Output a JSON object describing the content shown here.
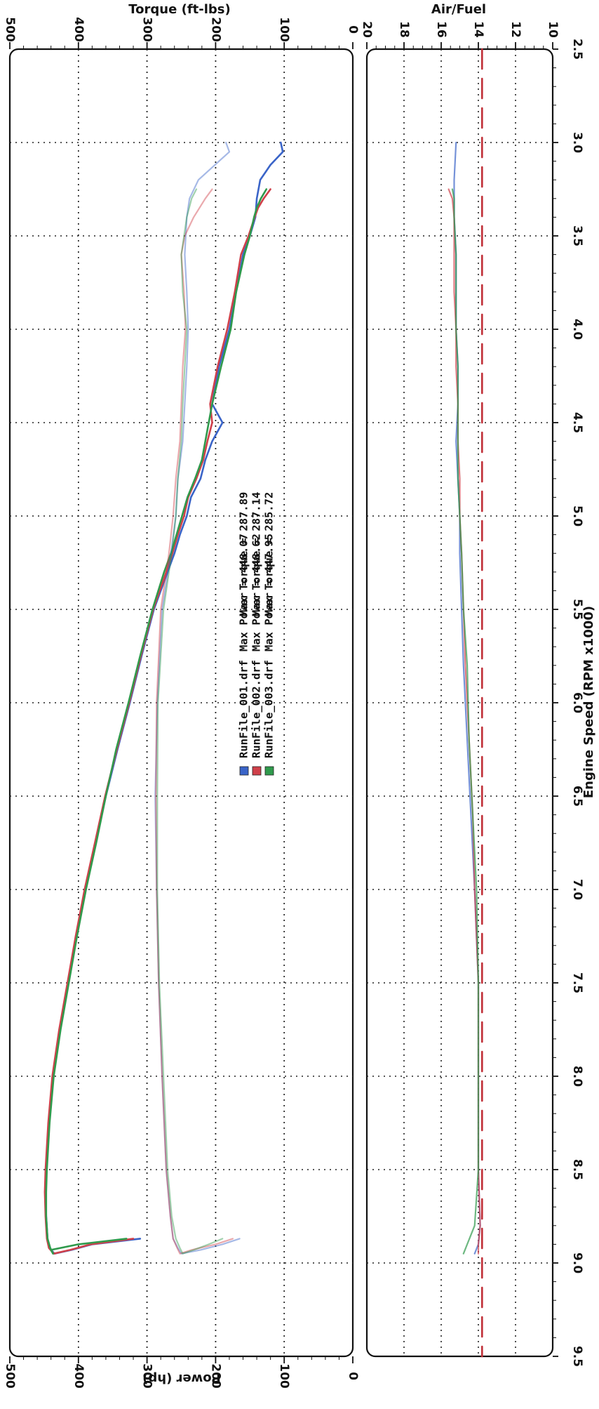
{
  "chart_data": [
    {
      "type": "line",
      "title": "",
      "ylabel_left": "Torque (ft-lbs)",
      "ylabel_right": "Power (hp)",
      "xlabel": "Engine Speed (RPM x1000)",
      "xlim": [
        2.5,
        9.5
      ],
      "ylim": [
        0,
        500
      ],
      "x_ticks": [
        "2.5",
        "3.0",
        "3.5",
        "4.0",
        "4.5",
        "5.0",
        "5.5",
        "6.0",
        "6.5",
        "7.0",
        "7.5",
        "8.0",
        "8.5",
        "9.0",
        "9.5"
      ],
      "y_ticks_torque": [
        "0",
        "100",
        "200",
        "300",
        "400",
        "500"
      ],
      "y_ticks_power": [
        "0",
        "100",
        "200",
        "300",
        "400",
        "500"
      ],
      "grid": true,
      "legend_position": "center",
      "legend": [
        {
          "run": "RunFile_001.drf",
          "power_label": "Max Power = 448.07",
          "torque_label": "Max Torque = 287.89",
          "color": "#3a64c8"
        },
        {
          "run": "RunFile_002.drf",
          "power_label": "Max Power = 448.62",
          "torque_label": "Max Torque = 287.14",
          "color": "#d0404a"
        },
        {
          "run": "RunFile_003.drf",
          "power_label": "Max Power = 447.95",
          "torque_label": "Max Torque = 285.72",
          "color": "#2f9a4c"
        }
      ],
      "series": [
        {
          "name": "RunFile_001.drf",
          "quantity": "Power",
          "color": "#3a64c8",
          "opacity": 1.0,
          "x": [
            3.0,
            3.05,
            3.12,
            3.2,
            3.3,
            3.4,
            3.5,
            3.6,
            3.8,
            4.0,
            4.2,
            4.4,
            4.5,
            4.6,
            4.7,
            4.8,
            4.9,
            5.0,
            5.1,
            5.2,
            5.3,
            5.5,
            5.75,
            6.0,
            6.25,
            6.5,
            6.75,
            7.0,
            7.25,
            7.5,
            7.75,
            8.0,
            8.25,
            8.5,
            8.62,
            8.75,
            8.87,
            8.92,
            8.95,
            8.93,
            8.9,
            8.87
          ],
          "y": [
            105,
            102,
            120,
            135,
            140,
            142,
            150,
            160,
            170,
            180,
            195,
            205,
            190,
            205,
            215,
            222,
            236,
            242,
            252,
            260,
            270,
            290,
            308,
            325,
            343,
            360,
            375,
            390,
            403,
            415,
            427,
            437,
            443,
            447,
            448,
            447,
            445,
            442,
            435,
            410,
            380,
            310
          ]
        },
        {
          "name": "RunFile_002.drf",
          "quantity": "Power",
          "color": "#d0404a",
          "opacity": 1.0,
          "x": [
            3.25,
            3.3,
            3.35,
            3.4,
            3.5,
            3.6,
            3.8,
            4.0,
            4.2,
            4.4,
            4.5,
            4.6,
            4.7,
            4.8,
            4.9,
            5.0,
            5.1,
            5.2,
            5.3,
            5.5,
            5.75,
            6.0,
            6.25,
            6.5,
            6.75,
            7.0,
            7.25,
            7.5,
            7.75,
            8.0,
            8.25,
            8.5,
            8.62,
            8.75,
            8.87,
            8.92,
            8.95,
            8.93,
            8.9,
            8.87
          ],
          "y": [
            120,
            130,
            138,
            143,
            152,
            163,
            172,
            183,
            197,
            208,
            205,
            212,
            218,
            228,
            240,
            246,
            255,
            263,
            272,
            291,
            309,
            326,
            344,
            361,
            376,
            391,
            404,
            416,
            428,
            438,
            444,
            448,
            449,
            448,
            446,
            443,
            436,
            412,
            382,
            320
          ]
        },
        {
          "name": "RunFile_003.drf",
          "quantity": "Power",
          "color": "#2f9a4c",
          "opacity": 1.0,
          "x": [
            3.25,
            3.3,
            3.35,
            3.4,
            3.5,
            3.6,
            3.8,
            4.0,
            4.2,
            4.4,
            4.5,
            4.6,
            4.7,
            4.8,
            4.9,
            5.0,
            5.1,
            5.2,
            5.3,
            5.5,
            5.75,
            6.0,
            6.25,
            6.5,
            6.75,
            7.0,
            7.25,
            7.5,
            7.75,
            8.0,
            8.25,
            8.5,
            8.62,
            8.75,
            8.87,
            8.92,
            8.95,
            8.93,
            8.9,
            8.87
          ],
          "y": [
            126,
            134,
            140,
            144,
            150,
            158,
            170,
            178,
            192,
            205,
            210,
            215,
            220,
            230,
            241,
            249,
            257,
            265,
            275,
            292,
            310,
            327,
            345,
            360,
            374,
            389,
            402,
            414,
            426,
            436,
            442,
            446,
            447,
            447,
            445,
            441,
            437,
            440,
            400,
            330
          ]
        },
        {
          "name": "RunFile_001.drf",
          "quantity": "Torque",
          "color": "#3a64c8",
          "opacity": 0.45,
          "x": [
            3.0,
            3.05,
            3.1,
            3.2,
            3.3,
            3.4,
            3.6,
            3.8,
            4.0,
            4.2,
            4.4,
            4.6,
            4.8,
            5.0,
            5.2,
            5.5,
            6.0,
            6.5,
            7.0,
            7.5,
            8.0,
            8.5,
            8.75,
            8.87,
            8.92,
            8.95,
            8.93,
            8.9,
            8.87
          ],
          "y": [
            185,
            180,
            195,
            225,
            238,
            242,
            245,
            242,
            240,
            242,
            245,
            248,
            255,
            258,
            265,
            278,
            285,
            288,
            286,
            283,
            278,
            272,
            266,
            262,
            255,
            250,
            222,
            190,
            165
          ]
        },
        {
          "name": "RunFile_002.drf",
          "quantity": "Torque",
          "color": "#d0404a",
          "opacity": 0.45,
          "x": [
            3.25,
            3.3,
            3.4,
            3.5,
            3.6,
            3.8,
            4.0,
            4.2,
            4.4,
            4.6,
            4.8,
            5.0,
            5.2,
            5.5,
            6.0,
            6.5,
            7.0,
            7.5,
            8.0,
            8.5,
            8.75,
            8.87,
            8.92,
            8.95,
            8.93,
            8.9,
            8.87
          ],
          "y": [
            205,
            215,
            232,
            245,
            250,
            246,
            244,
            248,
            250,
            252,
            258,
            262,
            268,
            280,
            286,
            287,
            286,
            283,
            278,
            272,
            266,
            262,
            256,
            252,
            235,
            200,
            175
          ]
        },
        {
          "name": "RunFile_003.drf",
          "quantity": "Torque",
          "color": "#2f9a4c",
          "opacity": 0.45,
          "x": [
            3.25,
            3.3,
            3.4,
            3.5,
            3.6,
            3.8,
            4.0,
            4.2,
            4.4,
            4.6,
            4.8,
            5.0,
            5.2,
            5.5,
            6.0,
            6.5,
            7.0,
            7.5,
            8.0,
            8.5,
            8.75,
            8.87,
            8.92,
            8.95,
            8.93,
            8.9,
            8.87
          ],
          "y": [
            228,
            235,
            242,
            246,
            250,
            248,
            242,
            245,
            248,
            250,
            255,
            258,
            264,
            276,
            284,
            285,
            285,
            282,
            276,
            270,
            264,
            258,
            252,
            248,
            232,
            210,
            190
          ]
        }
      ]
    },
    {
      "type": "line",
      "title": "",
      "ylabel": "Air/Fuel",
      "xlabel": "Engine Speed (RPM x1000)",
      "xlim": [
        2.5,
        9.5
      ],
      "ylim": [
        10,
        20
      ],
      "y_ticks": [
        "20",
        "18",
        "16",
        "14",
        "12",
        "10"
      ],
      "grid": true,
      "series": [
        {
          "name": "RunFile_001.drf",
          "color": "#3a64c8",
          "opacity": 0.7,
          "x": [
            3.0,
            3.2,
            3.4,
            3.6,
            3.8,
            4.0,
            4.2,
            4.4,
            4.6,
            4.8,
            5.0,
            5.2,
            5.5,
            5.8,
            6.2,
            6.6,
            7.0,
            7.5,
            8.0,
            8.5,
            8.8,
            8.9,
            8.95
          ],
          "y": [
            15.2,
            15.3,
            15.3,
            15.2,
            15.2,
            15.2,
            15.1,
            15.1,
            15.2,
            15.1,
            15.0,
            15.0,
            14.9,
            14.8,
            14.6,
            14.4,
            14.2,
            14.0,
            14.0,
            14.0,
            13.9,
            14.0,
            14.2
          ]
        },
        {
          "name": "RunFile_002.drf",
          "color": "#d0404a",
          "opacity": 0.7,
          "x": [
            3.25,
            3.3,
            3.4,
            3.6,
            3.8,
            4.0,
            4.2,
            4.4,
            4.6,
            4.8,
            5.0,
            5.2,
            5.5,
            5.8,
            6.2,
            6.6,
            7.0,
            7.5,
            8.0,
            8.5,
            8.8,
            8.9,
            8.95
          ],
          "y": [
            15.6,
            15.4,
            15.3,
            15.3,
            15.3,
            15.2,
            15.2,
            15.1,
            15.1,
            15.0,
            15.0,
            14.9,
            14.8,
            14.7,
            14.5,
            14.3,
            14.2,
            14.0,
            14.0,
            14.0,
            13.9,
            14.0,
            14.0
          ]
        },
        {
          "name": "RunFile_003.drf",
          "color": "#2f9a4c",
          "opacity": 0.7,
          "x": [
            3.25,
            3.3,
            3.4,
            3.6,
            3.8,
            4.0,
            4.2,
            4.4,
            4.6,
            4.8,
            5.0,
            5.2,
            5.5,
            5.8,
            6.2,
            6.6,
            7.0,
            7.5,
            8.0,
            8.5,
            8.8,
            8.9,
            8.95
          ],
          "y": [
            15.4,
            15.3,
            15.3,
            15.2,
            15.2,
            15.2,
            15.1,
            15.1,
            15.1,
            15.1,
            15.0,
            14.9,
            14.8,
            14.6,
            14.5,
            14.3,
            14.1,
            14.0,
            14.0,
            14.0,
            14.2,
            14.6,
            14.8
          ]
        },
        {
          "name": "",
          "color": "#c03038",
          "opacity": 1.0,
          "style": "dashed",
          "x": [
            2.5,
            9.5
          ],
          "y": [
            13.8,
            13.8
          ]
        }
      ]
    }
  ]
}
